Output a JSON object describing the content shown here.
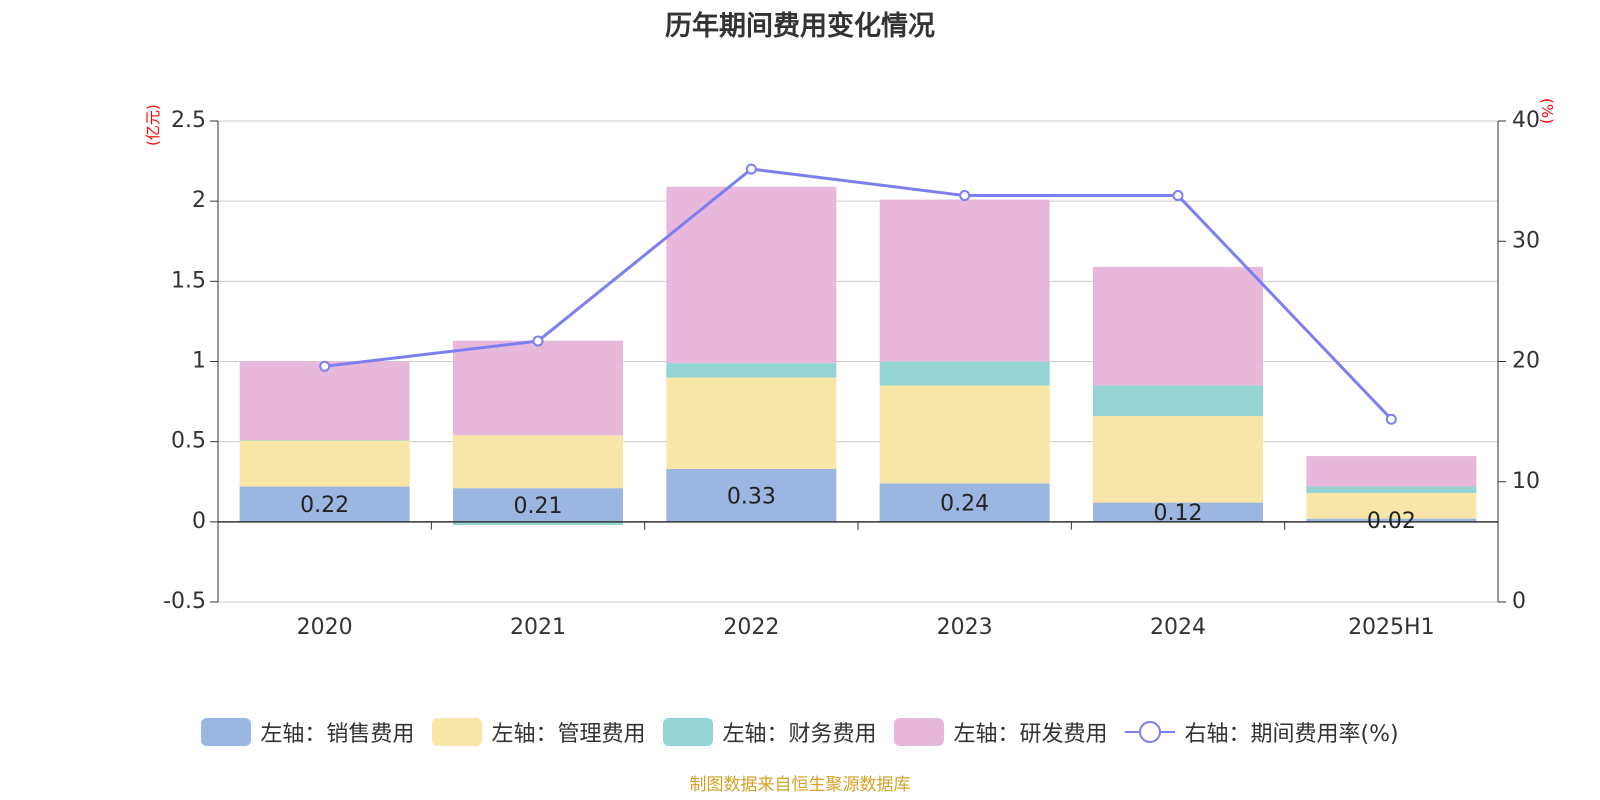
{
  "title": "历年期间费用变化情况",
  "left_unit": "(亿元)",
  "right_unit": "(%)",
  "source": "制图数据来自恒生聚源数据库",
  "colors": {
    "sales": "#9bb6e0",
    "admin": "#f8e6a8",
    "finance": "#95d4d4",
    "rd": "#e7b8d9",
    "rate": "#7b7ff0",
    "grid": "#cccccc",
    "axis": "#333333"
  },
  "chart_data": {
    "type": "bar",
    "stacked": true,
    "categories": [
      "2020",
      "2021",
      "2022",
      "2023",
      "2024",
      "2025H1"
    ],
    "y_left": {
      "ticks": [
        "-0.5",
        "0",
        "0.5",
        "1",
        "1.5",
        "2",
        "2.5"
      ],
      "ylim": [
        -0.5,
        2.5
      ]
    },
    "y_right": {
      "ticks": [
        "0",
        "10",
        "20",
        "30",
        "40"
      ],
      "ylim": [
        0,
        40
      ]
    },
    "grid": true,
    "legend_position": "bottom",
    "series": [
      {
        "key": "sales",
        "name": "左轴：销售费用",
        "axis": "left",
        "values": [
          0.22,
          0.21,
          0.33,
          0.24,
          0.12,
          0.02
        ],
        "labels": [
          "0.22",
          "0.21",
          "0.33",
          "0.24",
          "0.12",
          "0.02"
        ]
      },
      {
        "key": "admin",
        "name": "左轴：管理费用",
        "axis": "left",
        "values": [
          0.29,
          0.33,
          0.57,
          0.61,
          0.54,
          0.16
        ]
      },
      {
        "key": "finance",
        "name": "左轴：财务费用",
        "axis": "left",
        "values": [
          0.0,
          -0.02,
          0.09,
          0.15,
          0.19,
          0.04
        ]
      },
      {
        "key": "rd",
        "name": "左轴：研发费用",
        "axis": "left",
        "values": [
          0.49,
          0.59,
          1.1,
          1.01,
          0.74,
          0.19
        ]
      },
      {
        "key": "rate",
        "name": "右轴：期间费用率(%)",
        "axis": "right",
        "type": "line",
        "values": [
          19.6,
          21.7,
          36.0,
          33.8,
          33.8,
          15.2
        ]
      }
    ]
  }
}
